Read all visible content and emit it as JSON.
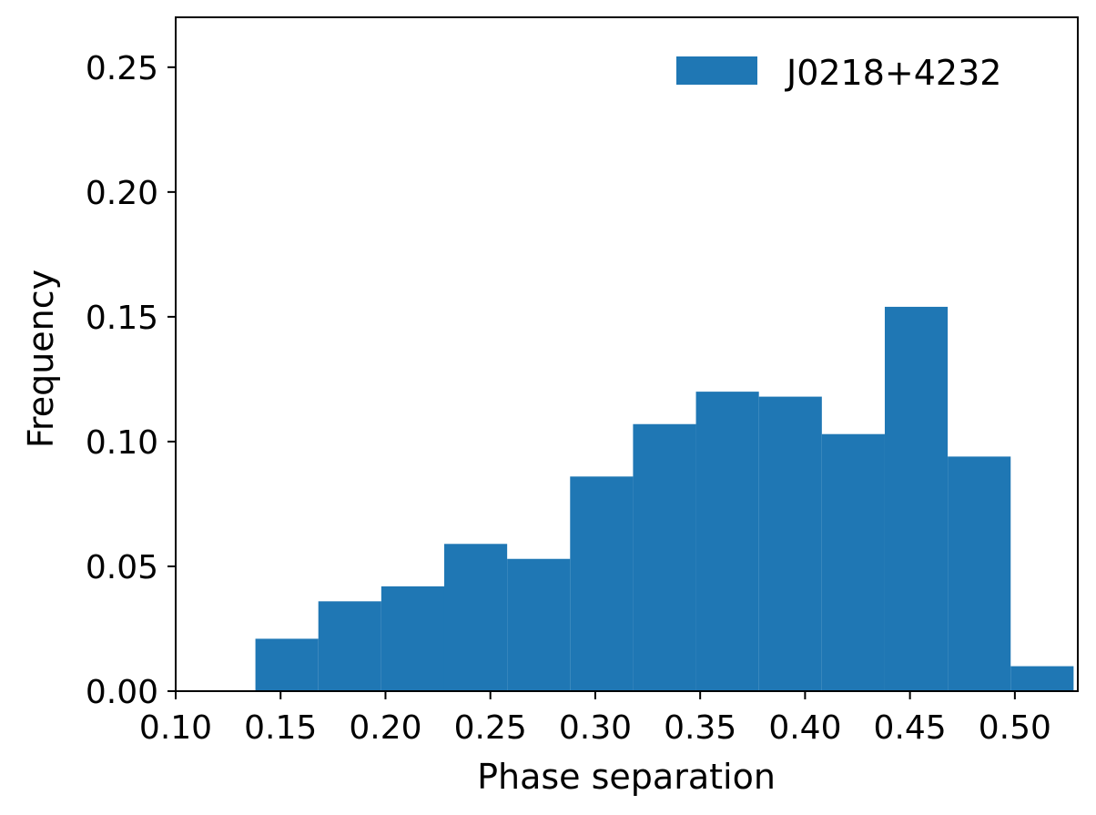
{
  "chart_data": {
    "type": "bar",
    "subtype": "histogram",
    "xlabel": "Phase separation",
    "ylabel": "Frequency",
    "xlim": [
      0.1,
      0.53
    ],
    "ylim": [
      0.0,
      0.27
    ],
    "xticks": [
      "0.10",
      "0.15",
      "0.20",
      "0.25",
      "0.30",
      "0.35",
      "0.40",
      "0.45",
      "0.50"
    ],
    "yticks": [
      "0.00",
      "0.05",
      "0.10",
      "0.15",
      "0.20",
      "0.25"
    ],
    "grid": false,
    "legend": {
      "position": "top-right"
    },
    "series": [
      {
        "name": "J0218+4232",
        "color": "#1f77b4",
        "bins": [
          {
            "x0": 0.138,
            "x1": 0.168,
            "value": 0.021
          },
          {
            "x0": 0.168,
            "x1": 0.198,
            "value": 0.036
          },
          {
            "x0": 0.198,
            "x1": 0.228,
            "value": 0.042
          },
          {
            "x0": 0.228,
            "x1": 0.258,
            "value": 0.059
          },
          {
            "x0": 0.258,
            "x1": 0.288,
            "value": 0.053
          },
          {
            "x0": 0.288,
            "x1": 0.318,
            "value": 0.086
          },
          {
            "x0": 0.318,
            "x1": 0.348,
            "value": 0.107
          },
          {
            "x0": 0.348,
            "x1": 0.378,
            "value": 0.12
          },
          {
            "x0": 0.378,
            "x1": 0.408,
            "value": 0.118
          },
          {
            "x0": 0.408,
            "x1": 0.438,
            "value": 0.103
          },
          {
            "x0": 0.438,
            "x1": 0.468,
            "value": 0.154
          },
          {
            "x0": 0.468,
            "x1": 0.498,
            "value": 0.094
          },
          {
            "x0": 0.498,
            "x1": 0.528,
            "value": 0.01
          }
        ]
      }
    ]
  }
}
